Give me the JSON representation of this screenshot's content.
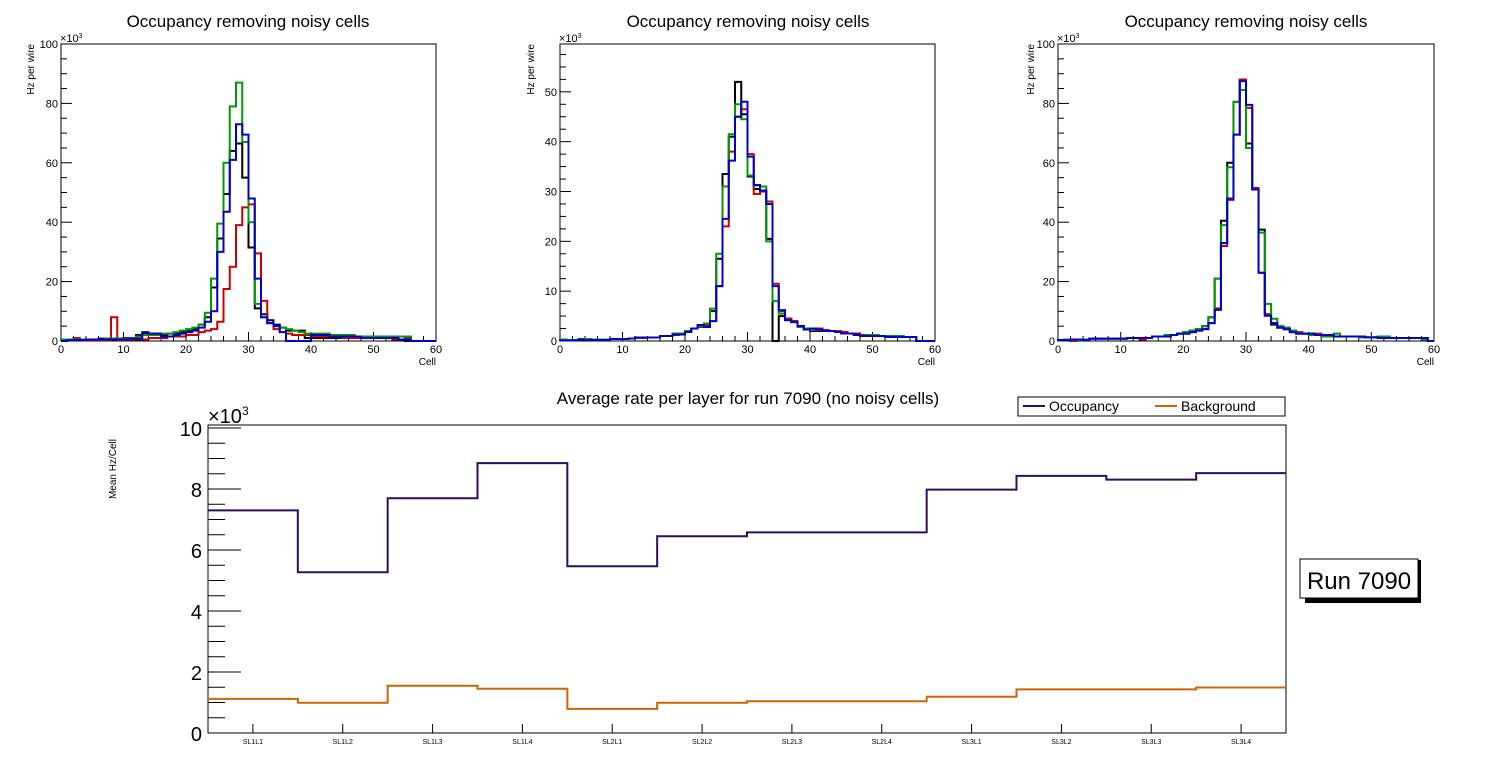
{
  "chart_data": [
    {
      "type": "line",
      "subtype": "step-histogram",
      "title": "Occupancy removing noisy cells",
      "xlabel": "Cell",
      "ylabel": "Hz per wire",
      "y_multiplier_label": "×10",
      "y_multiplier_exp": "3",
      "xlim": [
        0,
        60
      ],
      "ylim": [
        0,
        100
      ],
      "x_ticks": [
        0,
        10,
        20,
        30,
        40,
        50,
        60
      ],
      "y_ticks": [
        0,
        20,
        40,
        60,
        80,
        100
      ],
      "bins": 60,
      "series": [
        {
          "name": "black",
          "color": "#000000",
          "values": [
            0.5,
            0.5,
            0.5,
            0.5,
            0.5,
            0.5,
            0.8,
            0.8,
            0.8,
            0.8,
            1,
            1,
            2,
            2.5,
            2.5,
            2.5,
            2,
            2.5,
            2.5,
            3,
            3.5,
            4,
            5.5,
            8,
            18,
            34.5,
            49.5,
            64,
            66.5,
            55,
            31.5,
            11,
            9,
            7,
            5.5,
            4.5,
            3.5,
            3.5,
            3.5,
            1,
            1,
            1,
            1,
            1,
            1,
            1,
            1,
            1,
            1,
            1,
            1,
            1,
            1,
            1,
            0.5,
            0,
            0,
            0,
            0,
            0
          ]
        },
        {
          "name": "red",
          "color": "#cc0000",
          "values": [
            0.3,
            0.3,
            1,
            0.5,
            0.3,
            0.3,
            0.3,
            0.3,
            8,
            0.3,
            0.3,
            0.5,
            0.5,
            0.5,
            1,
            1,
            1,
            1.5,
            1.5,
            1.5,
            2,
            2,
            3,
            3.5,
            4,
            6.5,
            17.5,
            25,
            39,
            45,
            46,
            29.5,
            13.5,
            6,
            4,
            3,
            2.5,
            2,
            2,
            2,
            1.5,
            1.5,
            1.5,
            1.5,
            1.5,
            1,
            1,
            1,
            1,
            1,
            1,
            1,
            1,
            0.5,
            0.5,
            1,
            0,
            0,
            0,
            0
          ]
        },
        {
          "name": "green",
          "color": "#009900",
          "values": [
            0.5,
            0.5,
            0.5,
            0.5,
            0.5,
            0.5,
            0.5,
            0.8,
            0.8,
            0.8,
            0.8,
            1,
            1.5,
            2,
            2,
            2,
            2.5,
            2.5,
            3,
            3.5,
            4,
            4.5,
            5.5,
            9.5,
            21,
            39.5,
            60,
            79,
            87,
            67,
            40,
            12.5,
            8,
            6,
            5,
            4.5,
            4,
            3.5,
            3,
            2.5,
            2.5,
            2.5,
            2.5,
            2,
            2,
            2,
            2,
            1.5,
            1.5,
            1.5,
            1.5,
            1.5,
            1.5,
            1.5,
            1.5,
            1.5,
            0,
            0,
            0,
            0
          ]
        },
        {
          "name": "blue",
          "color": "#0000cc",
          "values": [
            0,
            0.3,
            0.3,
            0.3,
            0.5,
            0.5,
            0.5,
            0.5,
            0.5,
            0.5,
            0.5,
            0.8,
            0.8,
            3,
            2.5,
            2.5,
            1.5,
            1.5,
            2,
            2.5,
            3,
            3.5,
            4.5,
            6.5,
            10,
            30,
            43.5,
            61,
            73,
            69.5,
            48,
            21,
            8,
            6,
            5,
            3,
            0,
            0,
            0,
            0,
            2,
            2,
            2,
            1.5,
            1.5,
            1.5,
            1.5,
            1.5,
            1,
            1,
            1,
            1,
            1,
            1,
            0.5,
            0.5,
            0,
            0,
            0,
            0
          ]
        }
      ]
    },
    {
      "type": "line",
      "subtype": "step-histogram",
      "title": "Occupancy removing noisy cells",
      "xlabel": "Cell",
      "ylabel": "Hz per wire",
      "y_multiplier_label": "×10",
      "y_multiplier_exp": "3",
      "xlim": [
        0,
        60
      ],
      "ylim": [
        0,
        59.6
      ],
      "x_ticks": [
        0,
        10,
        20,
        30,
        40,
        50,
        60
      ],
      "y_ticks": [
        0,
        10,
        20,
        30,
        40,
        50
      ],
      "bins": 60,
      "series": [
        {
          "name": "black",
          "color": "#000000",
          "values": [
            0.2,
            0.2,
            0.2,
            0.4,
            0.3,
            0.3,
            0.3,
            0.3,
            0.4,
            0.4,
            0.4,
            0.5,
            0.6,
            0.6,
            0.7,
            0.7,
            1,
            1,
            1.3,
            1.5,
            2,
            2.5,
            3,
            3.2,
            6,
            16.5,
            33.5,
            41,
            52,
            45.5,
            33,
            30.5,
            30,
            20.5,
            0,
            5,
            4.5,
            4,
            3,
            2.5,
            2,
            2,
            2,
            2,
            1.8,
            1.5,
            1.5,
            1.2,
            1.2,
            1,
            1,
            1,
            1,
            0.8,
            0.8,
            0.8,
            0.8,
            0,
            0,
            0
          ]
        },
        {
          "name": "red",
          "color": "#cc0000",
          "values": [
            0.2,
            0.2,
            0.2,
            0.3,
            0.3,
            0.3,
            0.3,
            0.3,
            0.4,
            0.4,
            0.4,
            0.5,
            0.6,
            0.6,
            0.7,
            0.7,
            1,
            1,
            1.2,
            1.5,
            2,
            2.5,
            2.8,
            3.2,
            4,
            11,
            23,
            38,
            45,
            46.5,
            37.5,
            29.5,
            30,
            28,
            11.5,
            6,
            4.5,
            4,
            3,
            2.5,
            2.5,
            2.5,
            2.2,
            2,
            2,
            1.8,
            1.5,
            1.5,
            1.2,
            1.2,
            1,
            1,
            0.8,
            0.8,
            0.8,
            0.8,
            0.8,
            0,
            0,
            0
          ]
        },
        {
          "name": "green",
          "color": "#009900",
          "values": [
            0.3,
            0.2,
            0.2,
            0.3,
            0.4,
            0.3,
            0.3,
            0.3,
            0.4,
            0.4,
            0.4,
            0.5,
            0.6,
            0.7,
            0.7,
            0.7,
            1,
            1,
            1.5,
            1.5,
            2,
            2.5,
            3,
            3.5,
            6.5,
            17.5,
            31,
            41.5,
            47.5,
            44.5,
            33.2,
            31.2,
            31,
            20,
            8,
            5.5,
            4.2,
            3.8,
            2.8,
            2.5,
            2.2,
            2.2,
            2,
            2,
            1.8,
            1.5,
            1.5,
            1.3,
            1,
            1.2,
            1.2,
            1,
            1,
            1,
            1,
            0.8,
            0.8,
            0,
            0,
            0
          ]
        },
        {
          "name": "blue",
          "color": "#0000cc",
          "values": [
            0.1,
            0.1,
            0.1,
            0.2,
            0.2,
            0.2,
            0.2,
            0.2,
            0.4,
            0.4,
            0.4,
            0.5,
            0.7,
            0.7,
            0.7,
            0.7,
            1,
            1,
            1.3,
            1.3,
            1.8,
            2.5,
            3.2,
            2.8,
            4,
            11,
            24.5,
            36.2,
            45,
            48,
            37,
            31.3,
            30.2,
            27.5,
            11,
            6.2,
            4.2,
            3.8,
            3,
            2.3,
            2.5,
            2.3,
            2,
            2,
            1.8,
            1.5,
            1.5,
            1.3,
            1,
            1,
            1,
            1,
            0.8,
            0.8,
            0.8,
            0.8,
            0.8,
            0,
            0,
            0
          ]
        }
      ]
    },
    {
      "type": "line",
      "subtype": "step-histogram",
      "title": "Occupancy removing noisy cells",
      "xlabel": "Cell",
      "ylabel": "Hz per wire",
      "y_multiplier_label": "×10",
      "y_multiplier_exp": "3",
      "xlim": [
        0,
        60
      ],
      "ylim": [
        0,
        100
      ],
      "x_ticks": [
        0,
        10,
        20,
        30,
        40,
        50,
        60
      ],
      "y_ticks": [
        0,
        20,
        40,
        60,
        80,
        100
      ],
      "bins": 60,
      "series": [
        {
          "name": "black",
          "color": "#000000",
          "values": [
            0.3,
            0.5,
            0.5,
            0.5,
            0.5,
            0.8,
            0.8,
            0.8,
            0.8,
            0.8,
            0.8,
            1,
            1,
            1,
            1,
            1.5,
            1.5,
            2,
            2,
            2.5,
            3,
            3.5,
            4,
            5,
            8,
            21,
            40.5,
            60,
            80.5,
            88,
            66.5,
            51,
            37.5,
            9,
            5.5,
            4.5,
            4,
            3,
            2.5,
            2.5,
            2.5,
            2,
            2,
            2,
            1.5,
            1.5,
            1.5,
            1.5,
            1.5,
            1.2,
            1.2,
            1,
            1,
            1,
            1,
            1,
            1,
            1,
            1,
            0
          ]
        },
        {
          "name": "red",
          "color": "#cc0000",
          "values": [
            0.3,
            0.3,
            0,
            0.5,
            0.5,
            0.8,
            0.8,
            0.8,
            0.8,
            0.8,
            0.8,
            1,
            1,
            0.5,
            1,
            1.5,
            1.5,
            1.5,
            2,
            2.5,
            2.5,
            3,
            3.5,
            4,
            6,
            11,
            32,
            47.5,
            69.5,
            88,
            78.5,
            51.5,
            23,
            9,
            6,
            4.5,
            4,
            3.5,
            3,
            2.5,
            2.5,
            2.5,
            2,
            2,
            1.5,
            1.5,
            1.5,
            1.5,
            1.5,
            1.2,
            1.2,
            1,
            1,
            1,
            1,
            1,
            1,
            1,
            1,
            0
          ]
        },
        {
          "name": "green",
          "color": "#009900",
          "values": [
            0.3,
            0.5,
            0.5,
            0.3,
            0.5,
            0.8,
            0.8,
            0.8,
            0.8,
            0.8,
            0.8,
            1,
            1,
            1,
            1,
            1.5,
            1.5,
            2,
            2,
            2.5,
            3,
            3.5,
            4,
            5,
            8,
            21,
            39,
            58.5,
            80.5,
            84.5,
            65,
            51,
            36.5,
            12.5,
            7.5,
            5,
            4.5,
            3.5,
            2.5,
            2.5,
            2,
            2,
            1.5,
            1.5,
            2.5,
            1.5,
            1.5,
            1.5,
            1.2,
            1.2,
            1.2,
            1.5,
            1.5,
            1,
            1,
            1,
            1,
            1,
            0.5,
            0
          ]
        },
        {
          "name": "blue",
          "color": "#0000cc",
          "values": [
            0.3,
            0.3,
            0.5,
            0.5,
            0.3,
            0.8,
            0.8,
            0.8,
            0.8,
            0.8,
            0.8,
            1,
            1,
            1,
            1,
            1.5,
            1.5,
            1.5,
            2,
            2.5,
            2.5,
            3,
            3.5,
            4,
            6,
            10.5,
            33,
            48,
            69.5,
            87.5,
            79.5,
            51,
            23,
            8.5,
            6,
            4.5,
            4,
            3,
            2.5,
            2.5,
            2.5,
            2,
            2,
            2,
            1.5,
            1.5,
            1.5,
            1.5,
            1.5,
            1.2,
            1.2,
            1,
            1,
            1,
            1,
            1,
            1,
            1,
            1,
            0
          ]
        }
      ]
    },
    {
      "type": "line",
      "subtype": "step-histogram",
      "title": "Average rate per layer for run 7090 (no noisy cells)",
      "xlabel": "",
      "ylabel": "Mean Hz/Cell",
      "y_multiplier_label": "×10",
      "y_multiplier_exp": "3",
      "ylim": [
        0,
        10.1
      ],
      "y_ticks": [
        0,
        2,
        4,
        6,
        8,
        10
      ],
      "categories": [
        "SL1L1",
        "SL1L2",
        "SL1L3",
        "SL1L4",
        "SL2L1",
        "SL2L2",
        "SL2L3",
        "SL2L4",
        "SL3L1",
        "SL3L2",
        "SL3L3",
        "SL3L4"
      ],
      "legend_position": "top-right",
      "series": [
        {
          "name": "Occupancy",
          "color": "#2e0d5e",
          "values": [
            7.3,
            5.27,
            7.7,
            8.85,
            5.47,
            6.45,
            6.58,
            6.58,
            7.98,
            8.43,
            8.31,
            8.52
          ]
        },
        {
          "name": "Background",
          "color": "#cc6600",
          "values": [
            1.12,
            0.99,
            1.55,
            1.45,
            0.79,
            0.99,
            1.04,
            1.04,
            1.19,
            1.43,
            1.43,
            1.49
          ]
        }
      ],
      "annotation": "Run 7090"
    }
  ]
}
